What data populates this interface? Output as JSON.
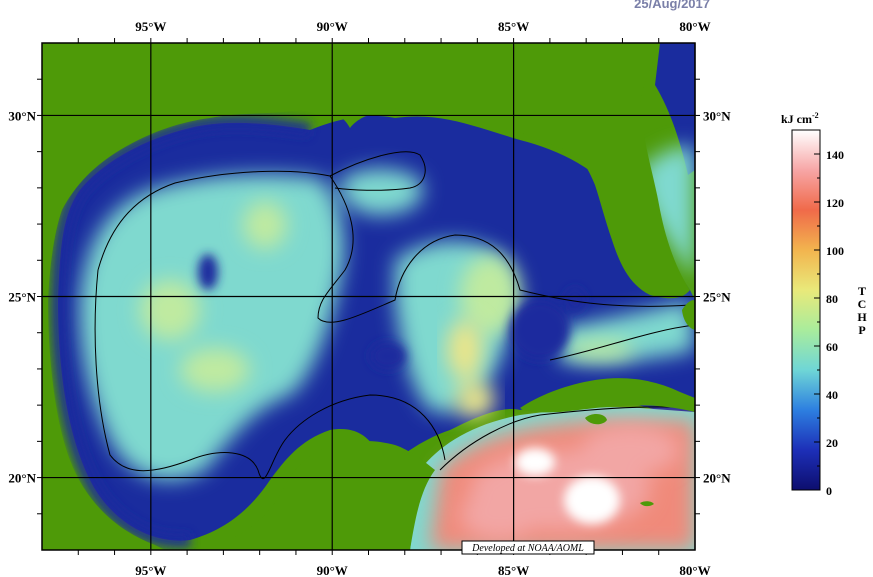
{
  "date_label": "25/Aug/2017",
  "credit": "Developed at NOAA/AOML",
  "axes": {
    "lon_labels": [
      "95°W",
      "90°W",
      "85°W",
      "80°W"
    ],
    "lat_labels": [
      "30°N",
      "25°N",
      "20°N"
    ],
    "lon_values": [
      -95,
      -90,
      -85,
      -80
    ],
    "lat_values": [
      30,
      25,
      20
    ],
    "lon_range": [
      -98,
      -80
    ],
    "lat_range": [
      18,
      32
    ]
  },
  "colorbar": {
    "unit": "kJ cm",
    "unit_exponent": "-2",
    "variable": "TCHP",
    "tick_labels": [
      "0",
      "20",
      "40",
      "60",
      "80",
      "100",
      "120",
      "140"
    ],
    "range": [
      0,
      150
    ],
    "colors": [
      "#0d0e6e",
      "#1d2fb8",
      "#2d7fe0",
      "#6fd6d6",
      "#a9ec9c",
      "#e9e97a",
      "#f2b44e",
      "#f06a4a",
      "#f7a6a6",
      "#ffffff"
    ]
  },
  "map_colors": {
    "land": "#4e9a08",
    "deep": "#1a2c9e",
    "cyan": "#7fd9cf",
    "green": "#bfeaa0",
    "yellow": "#eae58a",
    "warm": "#f08a7a",
    "hot": "#f2a6a4",
    "peak": "#ffffff"
  }
}
